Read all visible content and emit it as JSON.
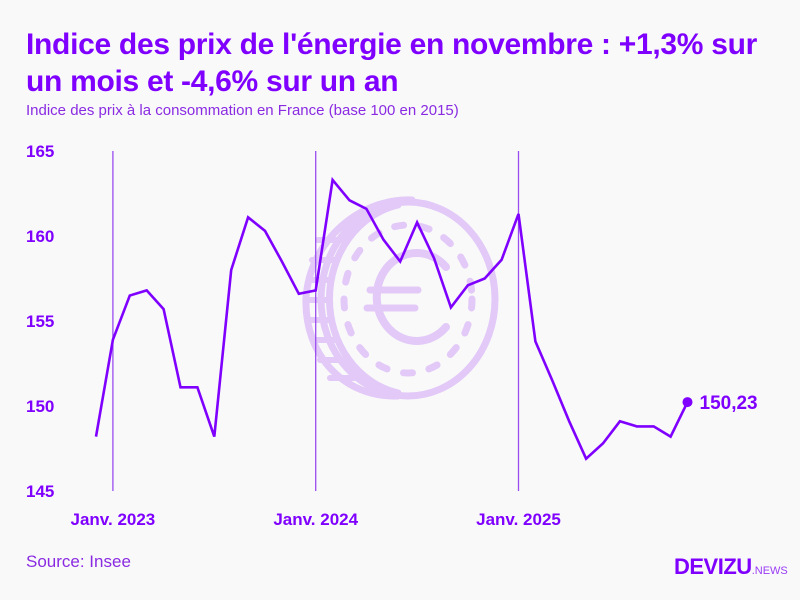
{
  "header": {
    "title": "Indice des prix de l'énergie en novembre : +1,3% sur un mois et -4,6% sur un an",
    "subtitle": "Indice des prix à la consommation en France (base 100 en 2015)"
  },
  "footer": {
    "source": "Source: Insee",
    "logo_main": "DEVIZU",
    "logo_suffix": ".NEWS"
  },
  "colors": {
    "accent": "#7f00ff",
    "watermark": "#e2c9f8",
    "background": "#f9f9f9"
  },
  "watermark_icon": "euro-coin-icon",
  "chart_data": {
    "type": "line",
    "title": "Indice des prix de l'énergie en novembre : +1,3% sur un mois et -4,6% sur un an",
    "subtitle": "Indice des prix à la consommation en France (base 100 en 2015)",
    "ylim": [
      145,
      165
    ],
    "yticks": [
      145,
      150,
      155,
      160,
      165
    ],
    "ytick_labels": [
      "145",
      "150",
      "155",
      "160",
      "165"
    ],
    "xticks": [
      {
        "date": "2023-01",
        "label": "Janv. 2023"
      },
      {
        "date": "2024-01",
        "label": "Janv. 2024"
      },
      {
        "date": "2025-01",
        "label": "Janv. 2025"
      }
    ],
    "grid": "vertical lines at January",
    "x": [
      "2022-12",
      "2023-01",
      "2023-02",
      "2023-03",
      "2023-04",
      "2023-05",
      "2023-06",
      "2023-07",
      "2023-08",
      "2023-09",
      "2023-10",
      "2023-11",
      "2023-12",
      "2024-01",
      "2024-02",
      "2024-03",
      "2024-04",
      "2024-05",
      "2024-06",
      "2024-07",
      "2024-08",
      "2024-09",
      "2024-10",
      "2024-11",
      "2024-12",
      "2025-01",
      "2025-02",
      "2025-03",
      "2025-04",
      "2025-05",
      "2025-06",
      "2025-07",
      "2025-08",
      "2025-09",
      "2025-10",
      "2025-11"
    ],
    "values": [
      148.2,
      153.9,
      156.5,
      156.8,
      155.7,
      151.1,
      151.1,
      148.2,
      158.0,
      161.1,
      160.3,
      158.5,
      156.6,
      156.8,
      163.3,
      162.1,
      161.6,
      159.8,
      158.5,
      160.8,
      158.7,
      155.8,
      157.1,
      157.5,
      158.6,
      161.3,
      153.8,
      151.5,
      149.1,
      146.9,
      147.8,
      149.1,
      148.8,
      148.8,
      148.2,
      150.23
    ],
    "end_label": "150,23"
  }
}
